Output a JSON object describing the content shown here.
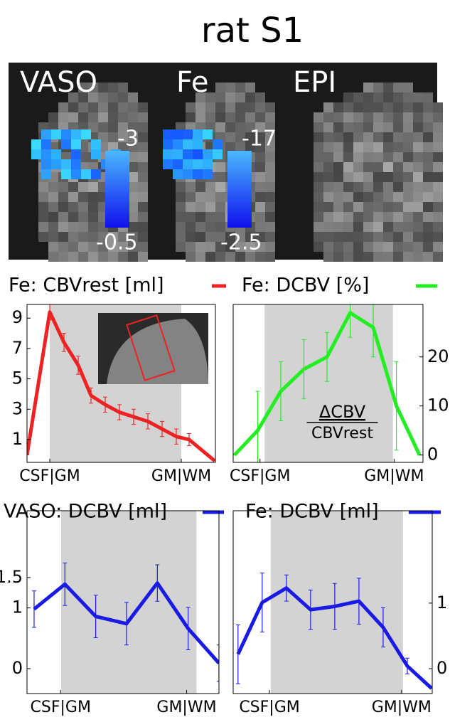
{
  "title": "rat S1",
  "images": [
    {
      "label": "VASO",
      "cbar_top": -3,
      "cbar_bottom": -0.5
    },
    {
      "label": "Fe",
      "cbar_top": -17,
      "cbar_bottom": -2.5
    },
    {
      "label": "EPI"
    }
  ],
  "chart_data": [
    {
      "type": "line",
      "yaxis": "left",
      "x": [
        0,
        1.6,
        2.6,
        3.6,
        4.5,
        5.5,
        6.5,
        7.5,
        8.5,
        9.5,
        10.5,
        11.4,
        13.2
      ],
      "xlim": [
        0,
        13.25
      ],
      "ylim": [
        -0.5,
        9.9
      ],
      "yticks": [
        1,
        3,
        5,
        7,
        9
      ],
      "xticks": [
        {
          "value": 1.6,
          "label": "CSF|GM"
        },
        {
          "value": 10.85,
          "label": "GM|WM"
        }
      ],
      "shade": [
        1.6,
        10.85
      ],
      "series": [
        {
          "name": "Fe: CBVrest [ml]",
          "color": "#ee2222",
          "values": [
            0,
            9.4,
            7.4,
            5.9,
            3.9,
            3.3,
            2.8,
            2.5,
            2.2,
            1.7,
            1.2,
            1.0,
            -0.4
          ],
          "errors": [
            0,
            0.5,
            0.6,
            0.6,
            0.5,
            0.5,
            0.5,
            0.5,
            0.5,
            0.5,
            0.5,
            0.4,
            0
          ]
        }
      ]
    },
    {
      "type": "line",
      "yaxis": "right",
      "x": [
        0,
        1,
        2,
        3,
        4,
        5,
        6,
        7,
        8
      ],
      "xlim": [
        -0.06,
        8.15
      ],
      "ylim": [
        -1.5,
        30.7
      ],
      "yticks": [
        0,
        10,
        20
      ],
      "xticks": [
        {
          "value": 1.1,
          "label": "CSF|GM"
        },
        {
          "value": 6.9,
          "label": "GM|WM"
        }
      ],
      "shade": [
        1.3,
        6.85
      ],
      "annotation": {
        "numerator": "ΔCBV",
        "denominator": "CBVrest"
      },
      "series": [
        {
          "name": "Fe: DCBV [%]",
          "color": "#22ee22",
          "values": [
            0,
            5,
            13,
            17.5,
            20,
            29,
            26,
            10,
            0
          ],
          "errors": [
            0,
            8,
            6,
            6,
            5,
            5,
            6,
            9,
            0
          ]
        }
      ]
    },
    {
      "type": "line",
      "yaxis": "left",
      "x": [
        0,
        1,
        2,
        3,
        4,
        5,
        6
      ],
      "xlim": [
        -0.23,
        6
      ],
      "ylim": [
        -0.41,
        2.6
      ],
      "yticks": [
        0,
        1,
        1.5
      ],
      "xticks": [
        {
          "value": 0.86,
          "label": "CSF|GM"
        },
        {
          "value": 4.95,
          "label": "GM|WM"
        }
      ],
      "shade": [
        0.88,
        5.27
      ],
      "series": [
        {
          "name": "VASO: DCBV [ml]",
          "color": "#1a1ae6",
          "values": [
            0.98,
            1.39,
            0.86,
            0.74,
            1.41,
            0.66,
            0.09
          ],
          "errors": [
            0.3,
            0.35,
            0.35,
            0.35,
            0.3,
            0.35,
            0.3
          ]
        }
      ]
    },
    {
      "type": "line",
      "yaxis": "right",
      "x": [
        0,
        1,
        2,
        3,
        4,
        5,
        6,
        7,
        8
      ],
      "xlim": [
        -0.2,
        8.03
      ],
      "ylim": [
        -0.38,
        2.41
      ],
      "yticks": [
        0,
        1
      ],
      "xticks": [
        {
          "value": 1.3,
          "label": "CSF|GM"
        },
        {
          "value": 6.76,
          "label": "GM|WM"
        }
      ],
      "shade": [
        1.35,
        6.82
      ],
      "series": [
        {
          "name": "Fe: DCBV [ml]",
          "color": "#1a1ae6",
          "values": [
            0.22,
            1.01,
            1.23,
            0.9,
            0.95,
            1.03,
            0.63,
            0.04,
            -0.3
          ],
          "errors": [
            0.45,
            0.45,
            0.2,
            0.3,
            0.35,
            0.35,
            0.3,
            0.12,
            0
          ]
        }
      ]
    }
  ]
}
